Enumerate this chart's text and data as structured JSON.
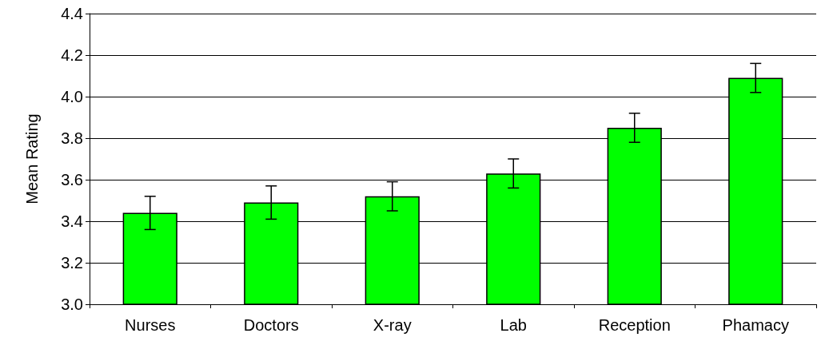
{
  "chart_data": {
    "type": "bar",
    "ylabel": "Mean Rating",
    "categories": [
      "Nurses",
      "Doctors",
      "X-ray",
      "Lab",
      "Reception",
      "Phamacy"
    ],
    "values": [
      3.44,
      3.49,
      3.52,
      3.63,
      3.85,
      4.09
    ],
    "errors": [
      0.08,
      0.08,
      0.07,
      0.07,
      0.07,
      0.07
    ],
    "color": "#00ff00",
    "ylim": [
      3.0,
      4.4
    ],
    "yticks": [
      {
        "value": 3.0,
        "label": "3.0"
      },
      {
        "value": 3.2,
        "label": "3.2"
      },
      {
        "value": 3.4,
        "label": "3.4"
      },
      {
        "value": 3.6,
        "label": "3.6"
      },
      {
        "value": 3.8,
        "label": "3.8"
      },
      {
        "value": 4.0,
        "label": "4.0"
      },
      {
        "value": 4.2,
        "label": "4.2"
      },
      {
        "value": 4.4,
        "label": "4.4"
      }
    ],
    "grid": "y"
  }
}
